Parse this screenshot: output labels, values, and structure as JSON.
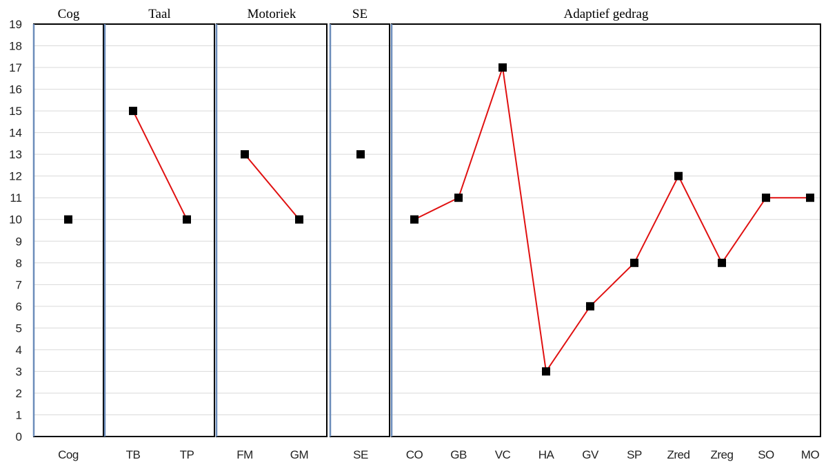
{
  "chart_data": {
    "type": "line",
    "ylim": [
      0,
      19
    ],
    "yticks": [
      "0",
      "1",
      "2",
      "3",
      "4",
      "5",
      "6",
      "7",
      "8",
      "9",
      "10",
      "11",
      "12",
      "13",
      "14",
      "15",
      "16",
      "17",
      "18",
      "19"
    ],
    "grid": true,
    "colors": {
      "line": "#e01010",
      "marker": "#000000",
      "panel_left_border": "#6b8cba"
    },
    "panels": [
      {
        "title": "Cog",
        "categories": [
          "Cog"
        ],
        "values": [
          10
        ]
      },
      {
        "title": "Taal",
        "categories": [
          "TB",
          "TP"
        ],
        "values": [
          15,
          10
        ]
      },
      {
        "title": "Motoriek",
        "categories": [
          "FM",
          "GM"
        ],
        "values": [
          13,
          10
        ]
      },
      {
        "title": "SE",
        "categories": [
          "SE"
        ],
        "values": [
          13
        ]
      },
      {
        "title": "Adaptief gedrag",
        "categories": [
          "CO",
          "GB",
          "VC",
          "HA",
          "GV",
          "SP",
          "Zred",
          "Zreg",
          "SO",
          "MO"
        ],
        "values": [
          10,
          11,
          17,
          3,
          6,
          8,
          12,
          8,
          11,
          11
        ]
      }
    ]
  }
}
